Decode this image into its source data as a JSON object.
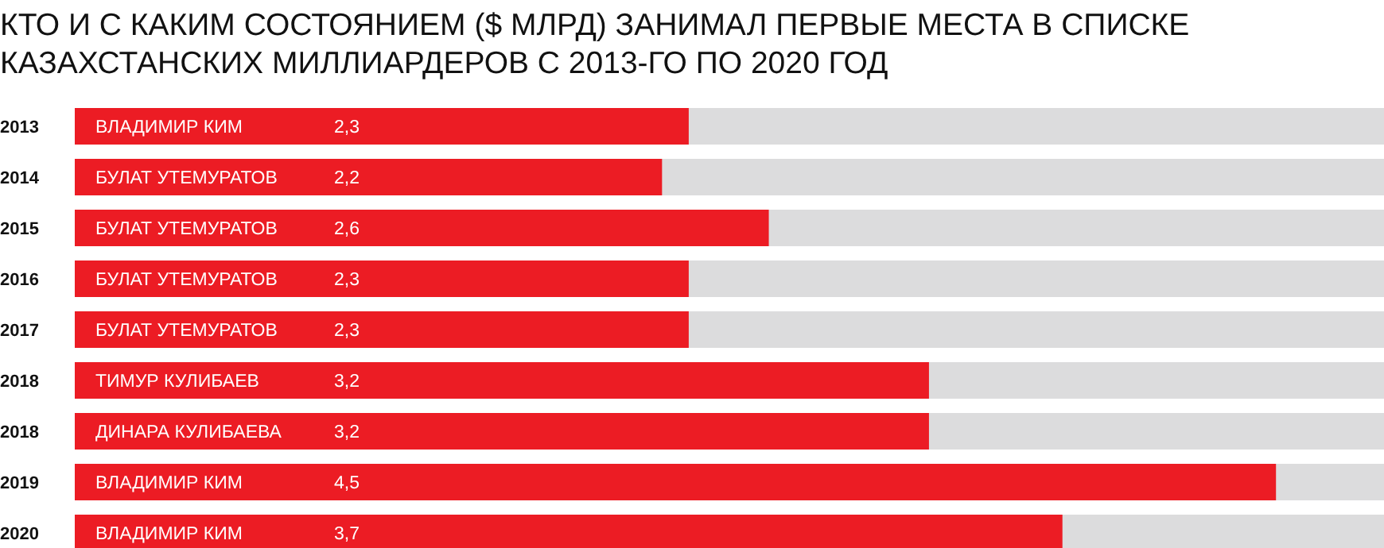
{
  "chart_data": {
    "type": "bar",
    "orientation": "horizontal",
    "title": "КТО И С КАКИМ СОСТОЯНИЕМ ($ МЛРД) ЗАНИМАЛ ПЕРВЫЕ МЕСТА В СПИСКЕ КАЗАХСТАНСКИХ МИЛЛИАРДЕРОВ С 2013-ГО ПО 2020 ГОД",
    "categories": [
      "2013",
      "2014",
      "2015",
      "2016",
      "2017",
      "2018",
      "2018",
      "2019",
      "2020"
    ],
    "values": [
      2.3,
      2.2,
      2.6,
      2.3,
      2.3,
      3.2,
      3.2,
      4.5,
      3.7
    ],
    "value_labels": [
      "2,3",
      "2,2",
      "2,6",
      "2,3",
      "2,3",
      "3,2",
      "3,2",
      "4,5",
      "3,7"
    ],
    "annotations": [
      "ВЛАДИМИР КИМ",
      "БУЛАТ УТЕМУРАТОВ",
      "БУЛАТ УТЕМУРАТОВ",
      "БУЛАТ УТЕМУРАТОВ",
      "БУЛАТ УТЕМУРАТОВ",
      "ТИМУР КУЛИБАЕВ",
      "ДИНАРА КУЛИБАЕВА",
      "ВЛАДИМИР КИМ",
      "ВЛАДИМИР КИМ"
    ],
    "color": "#ec1c24"
  }
}
